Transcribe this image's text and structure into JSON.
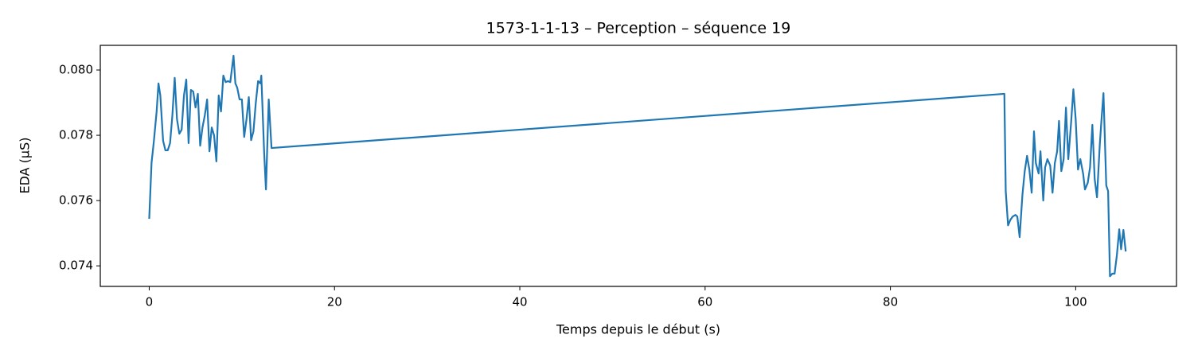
{
  "chart_data": {
    "type": "line",
    "title": "1573-1-1-13 – Perception – séquence 19",
    "x_label": "Temps depuis le début (s)",
    "y_label": "EDA (µS)",
    "xlim": [
      -5.28,
      110.88
    ],
    "ylim": [
      0.07337,
      0.080756
    ],
    "xticks": [
      0,
      20,
      40,
      60,
      80,
      100
    ],
    "yticks": [
      0.074,
      0.076,
      0.078,
      {
        "value": 0.08,
        "label": "0.080"
      }
    ],
    "grid": false,
    "series": [
      {
        "color": "#1f77b4",
        "x": [
          0,
          0.25,
          0.5,
          0.8,
          1.0,
          1.2,
          1.5,
          1.75,
          2.0,
          2.25,
          2.5,
          2.75,
          3.0,
          3.25,
          3.5,
          3.75,
          4.0,
          4.25,
          4.5,
          4.75,
          5.0,
          5.25,
          5.5,
          5.75,
          6.0,
          6.25,
          6.5,
          6.75,
          7.0,
          7.25,
          7.5,
          7.75,
          8.0,
          8.25,
          8.5,
          8.75,
          9.1,
          9.3,
          9.5,
          9.75,
          10.0,
          10.25,
          10.5,
          10.75,
          11.0,
          11.25,
          11.5,
          11.75,
          12.0,
          12.1,
          12.4,
          12.6,
          12.9,
          13.2,
          92.3,
          92.45,
          92.7,
          92.95,
          93.2,
          93.5,
          93.7,
          93.95,
          94.25,
          94.5,
          94.75,
          95.0,
          95.25,
          95.5,
          95.7,
          96.0,
          96.2,
          96.5,
          96.7,
          96.95,
          97.25,
          97.5,
          97.75,
          98.0,
          98.2,
          98.45,
          98.7,
          98.95,
          99.2,
          99.5,
          99.75,
          100.0,
          100.25,
          100.5,
          100.8,
          101.0,
          101.3,
          101.55,
          101.8,
          102.05,
          102.3,
          102.6,
          102.8,
          103.0,
          103.3,
          103.5,
          103.7,
          103.95,
          104.2,
          104.45,
          104.7,
          104.9,
          105.15,
          105.4
        ],
        "values": [
          0.07544,
          0.07715,
          0.07781,
          0.07873,
          0.07959,
          0.07922,
          0.07783,
          0.07754,
          0.07754,
          0.07776,
          0.07861,
          0.07976,
          0.07849,
          0.07805,
          0.07817,
          0.07922,
          0.07971,
          0.07776,
          0.07939,
          0.07934,
          0.07885,
          0.07927,
          0.07768,
          0.07824,
          0.07861,
          0.0791,
          0.07751,
          0.07824,
          0.078,
          0.0772,
          0.07922,
          0.07873,
          0.07983,
          0.07963,
          0.07966,
          0.07963,
          0.08044,
          0.07959,
          0.07946,
          0.0791,
          0.0791,
          0.07795,
          0.07849,
          0.07917,
          0.07785,
          0.07812,
          0.07898,
          0.07966,
          0.07959,
          0.07983,
          0.07751,
          0.07634,
          0.0791,
          0.07761,
          0.07927,
          0.07629,
          0.07524,
          0.07541,
          0.07551,
          0.07556,
          0.07551,
          0.07488,
          0.07617,
          0.0769,
          0.07737,
          0.07695,
          0.07624,
          0.07812,
          0.07715,
          0.07683,
          0.07751,
          0.076,
          0.07702,
          0.07727,
          0.07707,
          0.07624,
          0.07715,
          0.07751,
          0.07844,
          0.0769,
          0.07727,
          0.07885,
          0.07727,
          0.07837,
          0.07941,
          0.07849,
          0.07695,
          0.07727,
          0.07683,
          0.07634,
          0.07654,
          0.07702,
          0.07832,
          0.07666,
          0.0761,
          0.07771,
          0.07854,
          0.07929,
          0.07646,
          0.07629,
          0.07368,
          0.07376,
          0.07376,
          0.07434,
          0.07512,
          0.07451,
          0.0751,
          0.07444
        ]
      }
    ]
  }
}
